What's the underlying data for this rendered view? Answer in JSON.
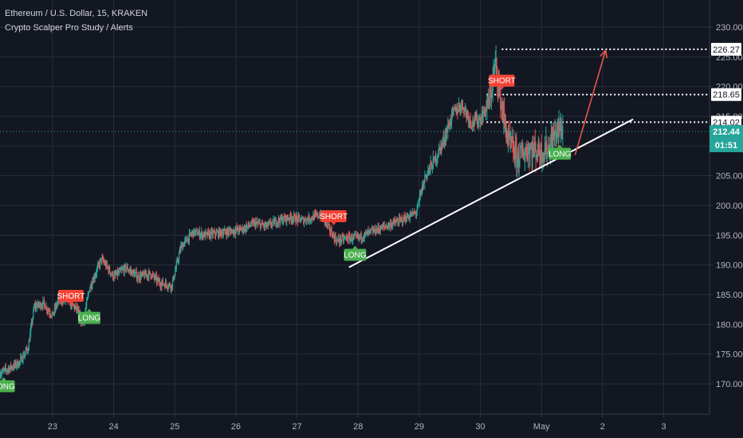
{
  "header": {
    "title": "Ethereum / U.S. Dollar, 15, KRAKEN",
    "indicator": "Crypto Scalper Pro Study / Alerts"
  },
  "colors": {
    "background": "#131722",
    "grid": "#2a2e39",
    "bull": "#26a69a",
    "bear": "#ef5350",
    "long": "#4caf50",
    "short": "#f44336",
    "trendline": "#ffffff",
    "arrow": "#f05a4a",
    "current_price": "#26a69a"
  },
  "chart_data": {
    "type": "candlestick",
    "ylim": [
      166,
      232
    ],
    "y_ticks": [
      170.0,
      175.0,
      180.0,
      185.0,
      190.0,
      195.0,
      200.0,
      205.0,
      210.0,
      215.0,
      220.0,
      225.0,
      230.0
    ],
    "x_ticks": [
      "23",
      "24",
      "25",
      "26",
      "27",
      "28",
      "29",
      "30",
      "May",
      "2",
      "3"
    ],
    "x_tick_pos": [
      0.5,
      1.5,
      2.5,
      3.5,
      4.5,
      5.5,
      6.5,
      7.5,
      8.5,
      9.5,
      10.5
    ],
    "xlim": [
      -0.36,
      11.25
    ],
    "grid": true,
    "price_path": [
      [
        -0.36,
        171.8
      ],
      [
        -0.05,
        173.5
      ],
      [
        0.1,
        176.0
      ],
      [
        0.2,
        183.0
      ],
      [
        0.35,
        183.5
      ],
      [
        0.5,
        181.5
      ],
      [
        0.6,
        184.2
      ],
      [
        0.75,
        184.0
      ],
      [
        0.9,
        182.5
      ],
      [
        1.0,
        180.0
      ],
      [
        1.1,
        186.0
      ],
      [
        1.3,
        191.0
      ],
      [
        1.5,
        188.0
      ],
      [
        1.7,
        189.5
      ],
      [
        1.9,
        188.0
      ],
      [
        2.1,
        188.5
      ],
      [
        2.25,
        187.0
      ],
      [
        2.45,
        186.5
      ],
      [
        2.6,
        193.0
      ],
      [
        2.8,
        195.5
      ],
      [
        3.0,
        195.0
      ],
      [
        3.3,
        195.5
      ],
      [
        3.6,
        196.0
      ],
      [
        3.8,
        197.0
      ],
      [
        4.0,
        196.5
      ],
      [
        4.2,
        197.5
      ],
      [
        4.4,
        198.0
      ],
      [
        4.6,
        197.5
      ],
      [
        4.9,
        198.5
      ],
      [
        5.0,
        196.5
      ],
      [
        5.15,
        194.0
      ],
      [
        5.3,
        194.5
      ],
      [
        5.5,
        194.5
      ],
      [
        5.7,
        195.5
      ],
      [
        5.95,
        196.5
      ],
      [
        6.2,
        197.5
      ],
      [
        6.45,
        198.8
      ],
      [
        6.6,
        205.0
      ],
      [
        6.75,
        207.5
      ],
      [
        6.9,
        211.0
      ],
      [
        7.05,
        215.5
      ],
      [
        7.2,
        217.0
      ],
      [
        7.35,
        214.0
      ],
      [
        7.5,
        214.5
      ],
      [
        7.65,
        217.5
      ],
      [
        7.75,
        224.0
      ],
      [
        7.85,
        216.5
      ],
      [
        7.95,
        211.0
      ],
      [
        8.1,
        208.0
      ],
      [
        8.3,
        209.5
      ],
      [
        8.5,
        209.0
      ],
      [
        8.6,
        209.5
      ],
      [
        8.75,
        212.5
      ],
      [
        8.85,
        213.0
      ]
    ],
    "signals": [
      {
        "type": "LONG",
        "label": "LONG",
        "x": -0.3,
        "y": 169.6
      },
      {
        "type": "SHORT",
        "label": "SHORT",
        "x": 0.8,
        "y": 184.8
      },
      {
        "type": "LONG",
        "label": "LONG",
        "x": 1.1,
        "y": 181.1
      },
      {
        "type": "SHORT",
        "label": "SHORT",
        "x": 5.1,
        "y": 198.2
      },
      {
        "type": "LONG",
        "label": "LONG",
        "x": 5.45,
        "y": 191.7
      },
      {
        "type": "SHORT",
        "label": "SHORT",
        "x": 7.85,
        "y": 221.0
      },
      {
        "type": "LONG",
        "label": "LONG",
        "x": 8.8,
        "y": 208.7
      }
    ],
    "levels": [
      {
        "label": "226.27",
        "value": 226.27,
        "x_from": 7.85
      },
      {
        "label": "218.65",
        "value": 218.65,
        "x_from": 7.6
      },
      {
        "label": "214.02",
        "value": 214.02,
        "x_from": 7.6
      }
    ],
    "trendline": [
      [
        5.35,
        189.6
      ],
      [
        10.0,
        214.5
      ]
    ],
    "arrow": [
      [
        9.05,
        208.5
      ],
      [
        9.55,
        226.1
      ]
    ],
    "current_price": {
      "label": "212.44",
      "value": 212.44,
      "countdown": "01:51"
    }
  }
}
